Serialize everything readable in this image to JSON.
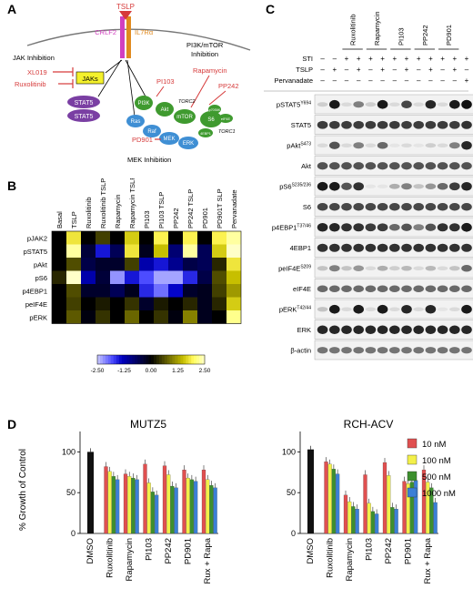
{
  "panels": {
    "a": "A",
    "b": "B",
    "c": "C",
    "d": "D"
  },
  "colors": {
    "red": "#d63a3a",
    "pink": "#d13fbf",
    "purple": "#7a3fa3",
    "orange": "#e08a1e",
    "green": "#3f9a2f",
    "blue": "#3f8fd4",
    "yellow": "#f4f12b",
    "bar_black": "#111111",
    "bar_10": "#e05050",
    "bar_100": "#f3f04a",
    "bar_500": "#3d8f2e",
    "bar_1000": "#3b7fd6"
  },
  "panel_a": {
    "tslp": "TSLP",
    "crlf2": "CRLF2",
    "il7r": "IL7Rα",
    "jak_inhibition": "JAK Inhibition",
    "pi3k_inhibition": "PI3K/mTOR",
    "pi3k_inhibition2": "Inhibition",
    "mek_inhibition": "MEK Inhibition",
    "xl019": "XL019",
    "ruxolitinib": "Ruxolitinib",
    "jaks": "JAKs",
    "stat5": "STAT5",
    "pi103": "PI103",
    "rapamycin": "Rapamycin",
    "pp242": "PP242",
    "pd901": "PD901",
    "pi3k": "PI3K",
    "akt": "Akt",
    "mtor": "mTOR",
    "torc2": "TORC2",
    "torc1": "TORC1",
    "s6": "S6",
    "raf": "Raf",
    "ras": "Ras",
    "mek": "MEK",
    "erk": "ERK",
    "pb": "4EBP1",
    "eif": "eIF4E",
    "rp": "p70S6K"
  },
  "panel_b": {
    "columns": [
      "Basal",
      "TSLP",
      "Ruxolitinib",
      "Ruxolitinib TSLP",
      "Rapamycin",
      "Rapamycin TSLP",
      "PI103",
      "PI103 TSLP",
      "PP242",
      "PP242 TSLP",
      "PD901",
      "PD901T SLP",
      "Pervanadate"
    ],
    "rows": [
      "pJAK2",
      "pSTAT5",
      "pAkt",
      "pS6",
      "p4EBP1",
      "peIF4E",
      "pERK"
    ],
    "scale_ticks": [
      "-2.50",
      "-1.25",
      "0.00",
      "1.25",
      "2.50"
    ],
    "values": [
      [
        0,
        1.8,
        0,
        0.5,
        0,
        1.6,
        0,
        1.9,
        0,
        1.9,
        0,
        1.9,
        2.3
      ],
      [
        0,
        2.3,
        -0.4,
        -1.5,
        -0.6,
        1.8,
        -0.2,
        1.5,
        -0.8,
        2.3,
        -0.6,
        1.6,
        2.5
      ],
      [
        0,
        0.6,
        -0.5,
        -0.3,
        -0.3,
        0.5,
        -1.2,
        -1.5,
        -1.0,
        -0.5,
        -0.6,
        0.3,
        1.8
      ],
      [
        0.3,
        2.5,
        -1.2,
        -0.4,
        -2.2,
        -1.5,
        -1.8,
        -2.3,
        -2.3,
        -1.6,
        -0.5,
        0.6,
        1.5
      ],
      [
        0,
        0.6,
        -0.3,
        -0.3,
        -0.6,
        -0.2,
        -1.6,
        -2.0,
        -1.4,
        -0.3,
        -0.2,
        0.5,
        1.2
      ],
      [
        0,
        0.5,
        0,
        0.2,
        0,
        0.4,
        -0.3,
        0.2,
        0,
        0.3,
        -0.2,
        0.3,
        1.6
      ],
      [
        0,
        0.7,
        -0.1,
        0.4,
        0,
        0.8,
        0,
        0.4,
        -0.1,
        1.0,
        -0.2,
        0.0,
        2.2
      ]
    ]
  },
  "panel_c": {
    "header_groups": [
      "Ruxolitinib",
      "Rapamycin",
      "PI103",
      "PP242",
      "PD901"
    ],
    "row_labels": [
      "STI",
      "TSLP",
      "Pervanadate"
    ],
    "sti": [
      "–",
      "–",
      "+",
      "+",
      "+",
      "+",
      "+",
      "+",
      "+",
      "+",
      "+",
      "+",
      "+"
    ],
    "tslp": [
      "–",
      "+",
      "–",
      "+",
      "–",
      "+",
      "–",
      "+",
      "–",
      "+",
      "–",
      "+",
      "–"
    ],
    "perv": [
      "–",
      "–",
      "–",
      "–",
      "–",
      "–",
      "–",
      "–",
      "–",
      "–",
      "–",
      "–",
      "+"
    ],
    "blots": [
      "pSTAT5",
      "STAT5",
      "pAkt",
      "Akt",
      "pS6",
      "S6",
      "p4EBP1",
      "4EBP1",
      "peIF4E",
      "eIF4E",
      "pERK",
      "ERK",
      "β-actin"
    ],
    "blot_sup": [
      "Y694",
      "",
      "S473",
      "",
      "S235/236",
      "",
      "T37/46",
      "",
      "S209",
      "",
      "T42/44",
      "",
      ""
    ]
  },
  "chart_data": [
    {
      "type": "bar",
      "title": "MUTZ5",
      "ylabel": "% Growth of Control",
      "categories": [
        "DMSO",
        "Ruxolitinib",
        "Rapamycin",
        "PI103",
        "PP242",
        "PD901",
        "Rux + Rapa"
      ],
      "ylim": [
        0,
        125
      ],
      "yticks": [
        "0",
        "50",
        "100"
      ],
      "control": 100,
      "series": [
        {
          "name": "10 nM",
          "values": [
            null,
            82,
            73,
            85,
            83,
            78,
            78
          ]
        },
        {
          "name": "100 nM",
          "values": [
            null,
            76,
            70,
            62,
            72,
            68,
            66
          ]
        },
        {
          "name": "500 nM",
          "values": [
            null,
            70,
            68,
            51,
            58,
            66,
            59
          ]
        },
        {
          "name": "1000 nM",
          "values": [
            null,
            66,
            66,
            47,
            56,
            64,
            56
          ]
        }
      ]
    },
    {
      "type": "bar",
      "title": "RCH-ACV",
      "categories": [
        "DMSO",
        "Ruxolitinib",
        "Rapamycin",
        "PI103",
        "PP242",
        "PD901",
        "Rux + Rapa"
      ],
      "ylim": [
        0,
        125
      ],
      "yticks": [
        "0",
        "50",
        "100"
      ],
      "control": 103,
      "legend": [
        "10 nM",
        "100 nM",
        "500 nM",
        "1000 nM"
      ],
      "series": [
        {
          "name": "10 nM",
          "values": [
            null,
            88,
            47,
            72,
            87,
            64,
            78
          ]
        },
        {
          "name": "100 nM",
          "values": [
            null,
            85,
            39,
            37,
            71,
            61,
            63
          ]
        },
        {
          "name": "500 nM",
          "values": [
            null,
            79,
            33,
            27,
            32,
            63,
            56
          ]
        },
        {
          "name": "1000 nM",
          "values": [
            null,
            73,
            30,
            24,
            30,
            65,
            38
          ]
        }
      ]
    }
  ]
}
